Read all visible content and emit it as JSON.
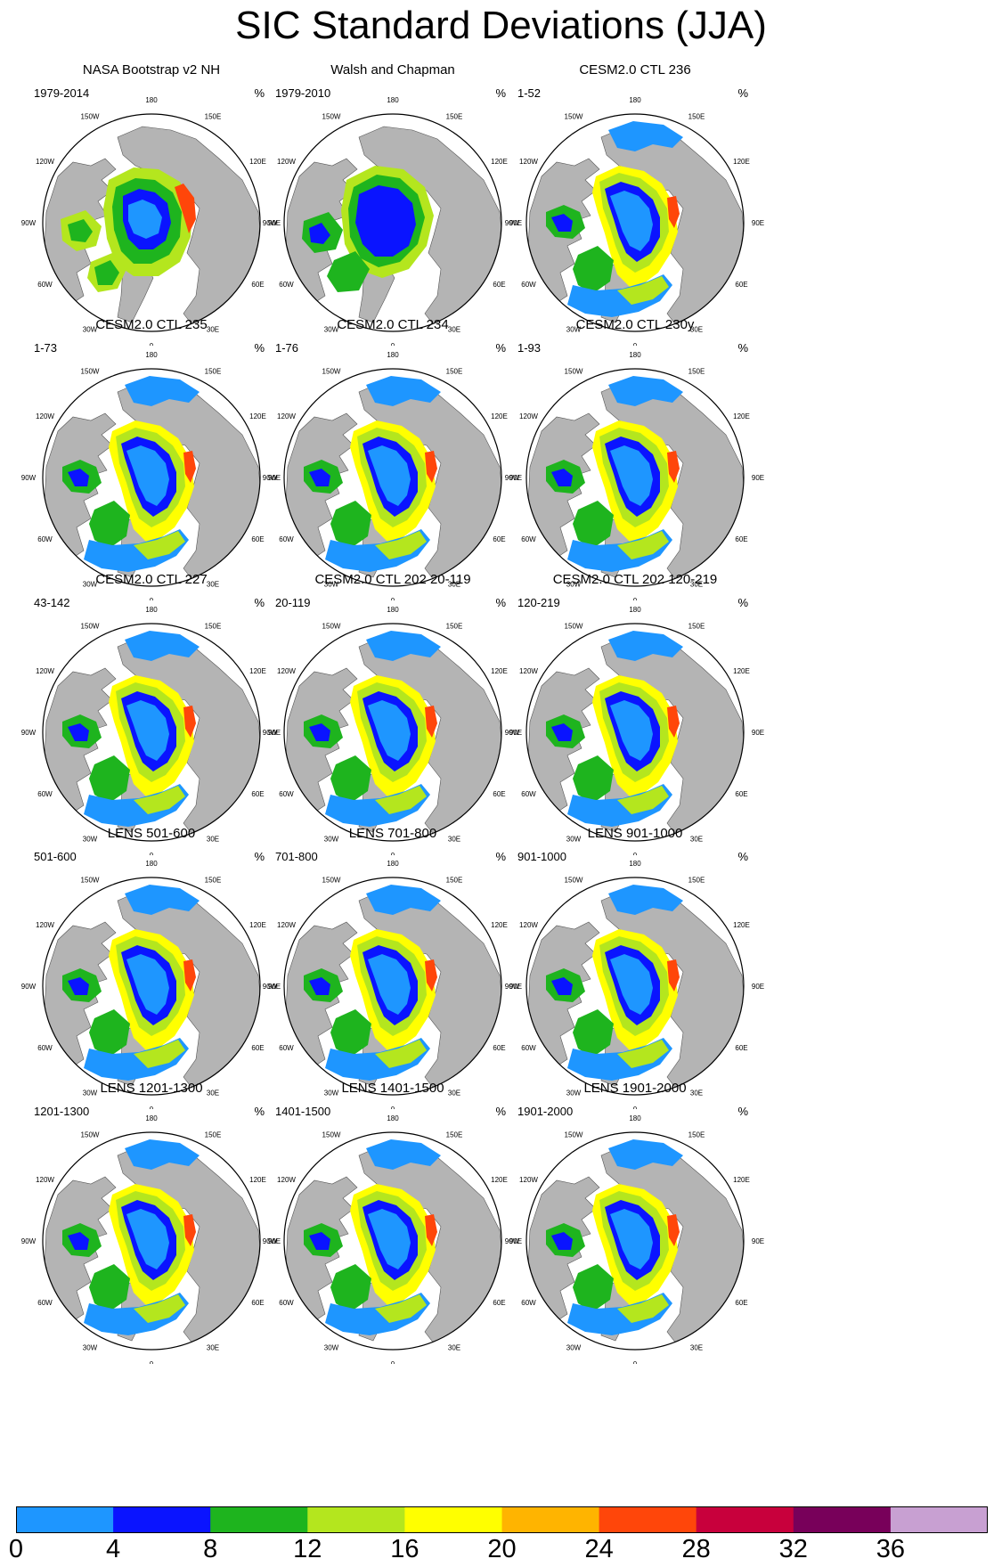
{
  "title": "SIC Standard Deviations (JJA)",
  "unit_label": "%",
  "longitude_labels": [
    "180",
    "150E",
    "120E",
    "90E",
    "60E",
    "30E",
    "0",
    "30W",
    "60W",
    "90W",
    "120W",
    "150W"
  ],
  "panels": [
    {
      "title": "NASA Bootstrap v2 NH",
      "range": "1979-2014",
      "pattern": "obs1"
    },
    {
      "title": "Walsh and Chapman",
      "range": "1979-2010",
      "pattern": "obs2"
    },
    {
      "title": "CESM2.0 CTL 236",
      "range": "1-52",
      "pattern": "model"
    },
    {
      "title": "CESM2.0 CTL 235",
      "range": "1-73",
      "pattern": "model"
    },
    {
      "title": "CESM2.0 CTL 234",
      "range": "1-76",
      "pattern": "model"
    },
    {
      "title": "CESM2.0 CTL 230y",
      "range": "1-93",
      "pattern": "model"
    },
    {
      "title": "CESM2.0 CTL 227",
      "range": "43-142",
      "pattern": "model"
    },
    {
      "title": "CESM2.0 CTL 202 20-119",
      "range": "20-119",
      "pattern": "model"
    },
    {
      "title": "CESM2.0 CTL 202 120-219",
      "range": "120-219",
      "pattern": "model"
    },
    {
      "title": "LENS 501-600",
      "range": "501-600",
      "pattern": "model"
    },
    {
      "title": "LENS 701-800",
      "range": "701-800",
      "pattern": "model"
    },
    {
      "title": "LENS 901-1000",
      "range": "901-1000",
      "pattern": "model"
    },
    {
      "title": "LENS 1201-1300",
      "range": "1201-1300",
      "pattern": "model"
    },
    {
      "title": "LENS 1401-1500",
      "range": "1401-1500",
      "pattern": "model"
    },
    {
      "title": "LENS 1901-2000",
      "range": "1901-2000",
      "pattern": "model"
    }
  ],
  "colorbar": {
    "colors": [
      "#1e96ff",
      "#0a14ff",
      "#1eb41e",
      "#b4e61e",
      "#ffff00",
      "#ffb400",
      "#ff460a",
      "#c8003c",
      "#78005a",
      "#c8a0d2"
    ],
    "labels": [
      "0",
      "4",
      "8",
      "12",
      "16",
      "20",
      "24",
      "28",
      "32",
      "36"
    ]
  },
  "colors": {
    "land": "#b4b4b4",
    "ocean": "#ffffff",
    "outline": "#000000"
  }
}
